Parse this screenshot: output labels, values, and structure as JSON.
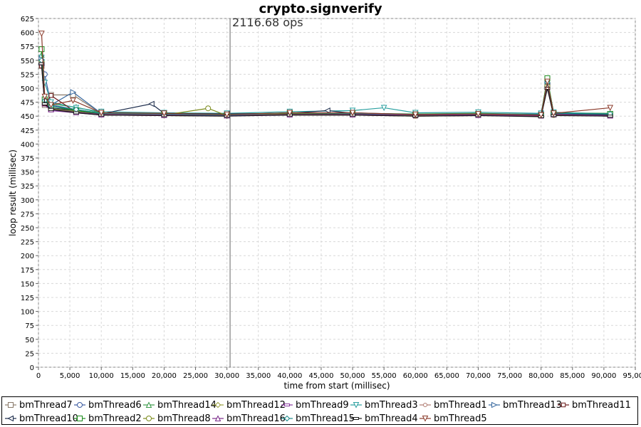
{
  "chart_data": {
    "type": "line",
    "title": "crypto.signverify",
    "annotation": "2116.68 ops",
    "annotation_x": 30500,
    "xlabel": "time from start (millisec)",
    "ylabel": "loop result (millisec)",
    "xlim": [
      0,
      95000
    ],
    "ylim": [
      0,
      625
    ],
    "x_ticks": [
      0,
      5000,
      10000,
      15000,
      20000,
      25000,
      30000,
      35000,
      40000,
      45000,
      50000,
      55000,
      60000,
      65000,
      70000,
      75000,
      80000,
      85000,
      90000,
      95000
    ],
    "x_tick_labels": [
      "0",
      "5,000",
      "10,000",
      "15,000",
      "20,000",
      "25,000",
      "30,000",
      "35,000",
      "40,000",
      "45,000",
      "50,000",
      "55,000",
      "60,000",
      "65,000",
      "70,000",
      "75,000",
      "80,000",
      "85,000",
      "90,000",
      "95,000"
    ],
    "y_ticks": [
      0,
      25,
      50,
      75,
      100,
      125,
      150,
      175,
      200,
      225,
      250,
      275,
      300,
      325,
      350,
      375,
      400,
      425,
      450,
      475,
      500,
      525,
      550,
      575,
      600,
      625
    ],
    "grid": true,
    "legend_position": "bottom",
    "series": [
      {
        "name": "bmThread7",
        "color": "#8a7a6a",
        "marker": "square",
        "x": [
          500,
          1000,
          2000,
          5500,
          10000,
          20000,
          30000,
          40000,
          50000,
          60000,
          70000,
          80000,
          81000,
          82000,
          91000
        ],
        "y": [
          540,
          470,
          488,
          488,
          455,
          453,
          453,
          455,
          455,
          453,
          454,
          452,
          505,
          455,
          452
        ]
      },
      {
        "name": "bmThread6",
        "color": "#3a5aa0",
        "marker": "circle",
        "x": [
          500,
          1000,
          2000,
          6000,
          10000,
          20000,
          30000,
          40000,
          50000,
          60000,
          70000,
          80000,
          81000,
          82000,
          91000
        ],
        "y": [
          545,
          525,
          470,
          462,
          455,
          452,
          454,
          455,
          456,
          452,
          453,
          454,
          510,
          455,
          452
        ]
      },
      {
        "name": "bmThread14",
        "color": "#3a9a4a",
        "marker": "triangle-up",
        "x": [
          500,
          1000,
          2000,
          6000,
          10000,
          20000,
          30000,
          40000,
          50000,
          60000,
          70000,
          80000,
          81000,
          82000,
          91000
        ],
        "y": [
          560,
          480,
          472,
          466,
          456,
          455,
          452,
          456,
          455,
          454,
          455,
          453,
          515,
          456,
          455
        ]
      },
      {
        "name": "bmThread12",
        "color": "#9aa040",
        "marker": "diamond",
        "x": [
          500,
          1000,
          2000,
          6000,
          10000,
          20000,
          30000,
          40000,
          50000,
          60000,
          70000,
          80000,
          81000,
          82000,
          91000
        ],
        "y": [
          550,
          475,
          462,
          458,
          453,
          451,
          450,
          454,
          453,
          451,
          452,
          452,
          505,
          453,
          451
        ]
      },
      {
        "name": "bmThread9",
        "color": "#8a3aa0",
        "marker": "dash",
        "x": [
          500,
          1000,
          2000,
          6000,
          10000,
          20000,
          30000,
          40000,
          50000,
          60000,
          70000,
          80000,
          81000,
          82000,
          91000
        ],
        "y": [
          545,
          470,
          460,
          456,
          452,
          452,
          451,
          453,
          452,
          451,
          452,
          451,
          500,
          452,
          450
        ]
      },
      {
        "name": "bmThread3",
        "color": "#2aa0a0",
        "marker": "triangle-down",
        "x": [
          500,
          1000,
          2000,
          6000,
          10000,
          20000,
          30000,
          40000,
          50000,
          55000,
          60000,
          70000,
          80000,
          81000,
          82000,
          91000
        ],
        "y": [
          555,
          510,
          475,
          465,
          458,
          456,
          455,
          458,
          460,
          465,
          456,
          457,
          455,
          515,
          457,
          454
        ]
      },
      {
        "name": "bmThread1",
        "color": "#b07a70",
        "marker": "circle-small",
        "x": [
          500,
          1000,
          2000,
          6000,
          10000,
          20000,
          30000,
          40000,
          50000,
          60000,
          70000,
          80000,
          81000,
          82000,
          91000
        ],
        "y": [
          548,
          478,
          465,
          458,
          454,
          453,
          452,
          454,
          454,
          452,
          453,
          452,
          502,
          453,
          452
        ]
      },
      {
        "name": "bmThread13",
        "color": "#3a6aa0",
        "marker": "triangle-right",
        "x": [
          500,
          1000,
          2000,
          5500,
          10000,
          20000,
          30000,
          40000,
          50000,
          60000,
          70000,
          80000,
          81000,
          82000,
          91000
        ],
        "y": [
          552,
          480,
          470,
          493,
          455,
          454,
          453,
          455,
          456,
          453,
          454,
          453,
          508,
          454,
          453
        ]
      },
      {
        "name": "bmThread11",
        "color": "#6a1a1a",
        "marker": "square-small",
        "x": [
          500,
          1000,
          2000,
          6000,
          10000,
          20000,
          30000,
          40000,
          50000,
          60000,
          70000,
          80000,
          81000,
          82000,
          91000
        ],
        "y": [
          540,
          472,
          487,
          457,
          452,
          451,
          451,
          452,
          452,
          450,
          451,
          450,
          505,
          452,
          450
        ]
      },
      {
        "name": "bmThread10",
        "color": "#1a2a4a",
        "marker": "triangle-left",
        "x": [
          500,
          1000,
          2000,
          6000,
          10000,
          18000,
          20000,
          30000,
          40000,
          46000,
          50000,
          60000,
          70000,
          80000,
          81000,
          82000,
          91000
        ],
        "y": [
          545,
          475,
          465,
          460,
          454,
          472,
          455,
          454,
          455,
          460,
          455,
          453,
          454,
          453,
          503,
          454,
          453
        ]
      },
      {
        "name": "bmThread2",
        "color": "#1a8a1a",
        "marker": "square",
        "x": [
          500,
          1000,
          2000,
          6000,
          10000,
          20000,
          30000,
          40000,
          50000,
          60000,
          70000,
          80000,
          81000,
          82000,
          91000
        ],
        "y": [
          570,
          480,
          468,
          460,
          455,
          454,
          452,
          455,
          455,
          453,
          454,
          452,
          518,
          455,
          454
        ]
      },
      {
        "name": "bmThread8",
        "color": "#7a8a1a",
        "marker": "circle",
        "x": [
          500,
          1000,
          2000,
          6000,
          10000,
          20000,
          27000,
          30000,
          40000,
          50000,
          60000,
          70000,
          80000,
          81000,
          82000,
          91000
        ],
        "y": [
          548,
          476,
          463,
          458,
          453,
          452,
          464,
          451,
          454,
          453,
          451,
          452,
          451,
          504,
          452,
          451
        ]
      },
      {
        "name": "bmThread16",
        "color": "#7a2a8a",
        "marker": "triangle-up",
        "x": [
          500,
          1000,
          2000,
          6000,
          10000,
          20000,
          30000,
          40000,
          50000,
          60000,
          70000,
          80000,
          81000,
          82000,
          91000
        ],
        "y": [
          546,
          474,
          462,
          457,
          453,
          452,
          451,
          453,
          453,
          452,
          452,
          451,
          502,
          453,
          451
        ]
      },
      {
        "name": "bmThread15",
        "color": "#1a8a8a",
        "marker": "diamond",
        "x": [
          500,
          1000,
          2000,
          6000,
          10000,
          20000,
          30000,
          40000,
          50000,
          60000,
          70000,
          80000,
          81000,
          82000,
          91000
        ],
        "y": [
          550,
          478,
          468,
          462,
          455,
          454,
          452,
          456,
          455,
          453,
          454,
          453,
          510,
          455,
          454
        ]
      },
      {
        "name": "bmThread4",
        "color": "#1a1a1a",
        "marker": "dash",
        "x": [
          500,
          1000,
          2000,
          6000,
          10000,
          20000,
          30000,
          40000,
          50000,
          60000,
          70000,
          80000,
          81000,
          82000,
          91000
        ],
        "y": [
          544,
          472,
          462,
          456,
          452,
          451,
          450,
          452,
          452,
          450,
          451,
          449,
          500,
          451,
          450
        ]
      },
      {
        "name": "bmThread5",
        "color": "#8a3a2a",
        "marker": "triangle-down",
        "x": [
          500,
          1000,
          2000,
          5500,
          10000,
          20000,
          30000,
          40000,
          50000,
          60000,
          70000,
          80000,
          81000,
          82000,
          91000
        ],
        "y": [
          598,
          485,
          470,
          478,
          456,
          455,
          453,
          456,
          456,
          453,
          454,
          452,
          512,
          455,
          465
        ]
      }
    ]
  }
}
